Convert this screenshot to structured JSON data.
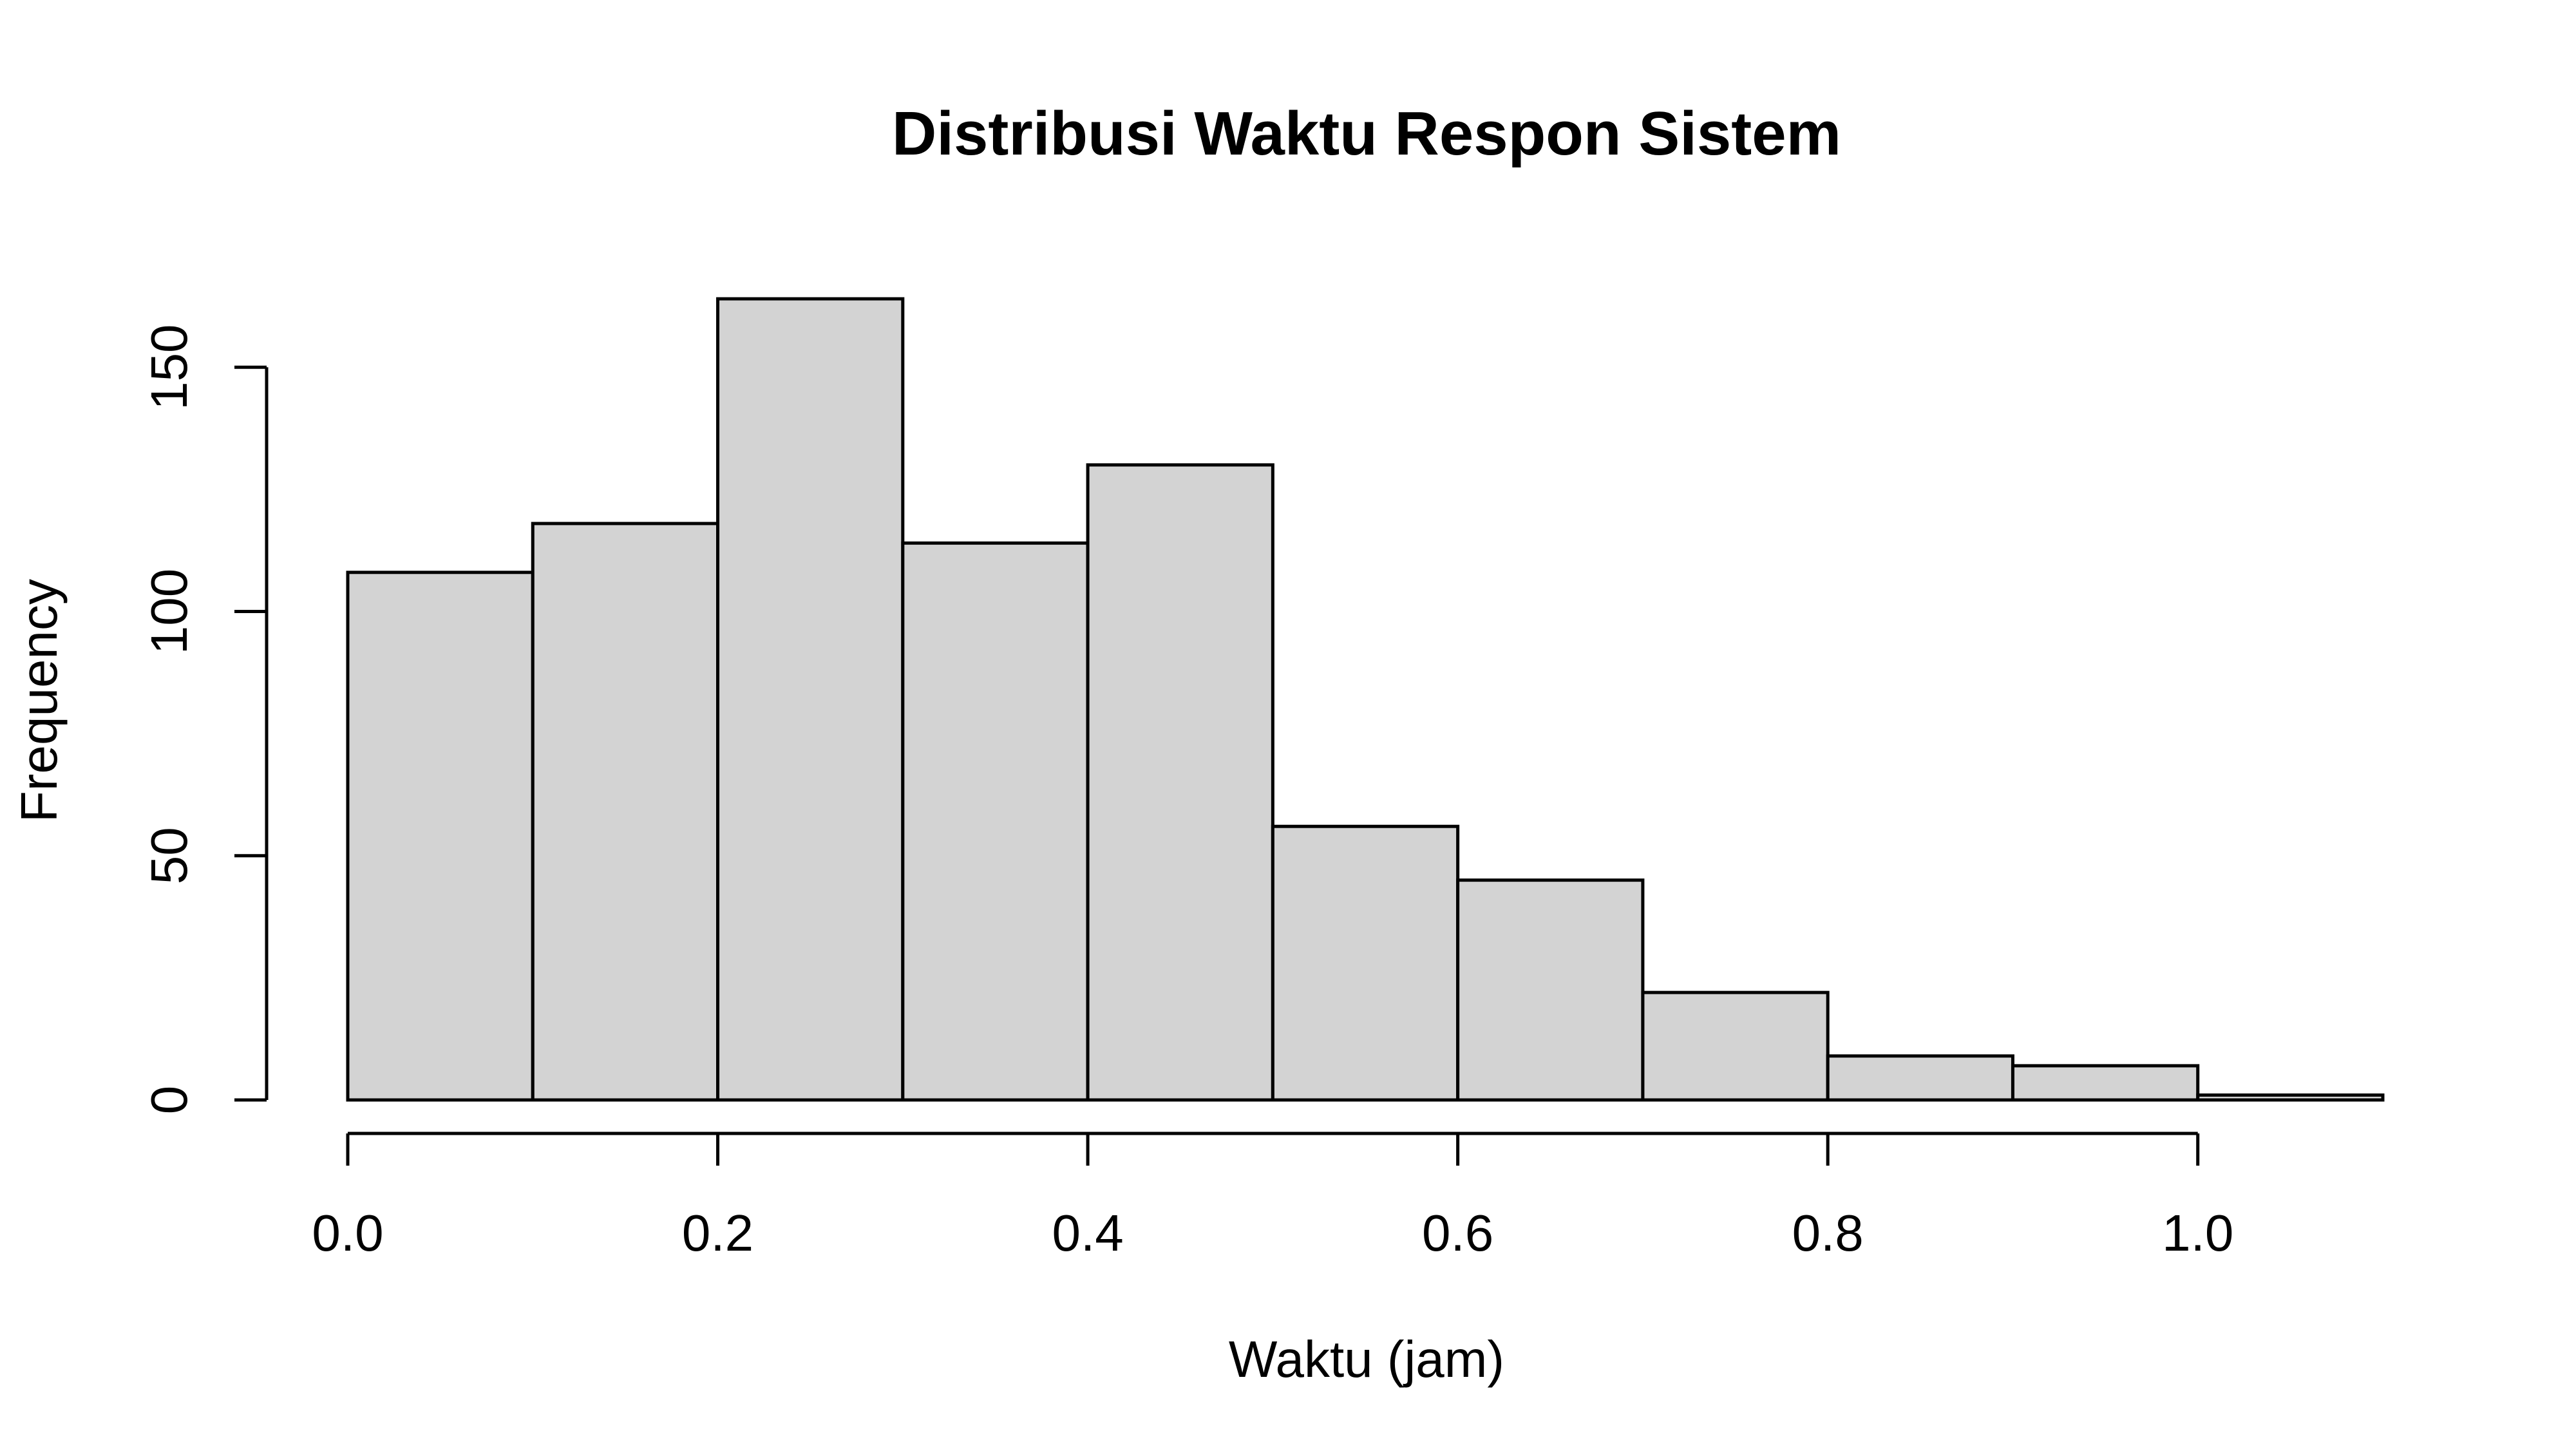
{
  "chart_data": {
    "type": "bar",
    "subtype": "histogram",
    "title": "Distribusi Waktu Respon Sistem",
    "xlabel": "Waktu (jam)",
    "ylabel": "Frequency",
    "bins": [
      {
        "start": 0.0,
        "end": 0.1,
        "count": 108
      },
      {
        "start": 0.1,
        "end": 0.2,
        "count": 118
      },
      {
        "start": 0.2,
        "end": 0.3,
        "count": 164
      },
      {
        "start": 0.3,
        "end": 0.4,
        "count": 114
      },
      {
        "start": 0.4,
        "end": 0.5,
        "count": 130
      },
      {
        "start": 0.5,
        "end": 0.6,
        "count": 56
      },
      {
        "start": 0.6,
        "end": 0.7,
        "count": 45
      },
      {
        "start": 0.7,
        "end": 0.8,
        "count": 22
      },
      {
        "start": 0.8,
        "end": 0.9,
        "count": 9
      },
      {
        "start": 0.9,
        "end": 1.0,
        "count": 7
      },
      {
        "start": 1.0,
        "end": 1.1,
        "count": 1
      }
    ],
    "xlim": [
      0.0,
      1.1
    ],
    "ylim": [
      0,
      164
    ],
    "x_ticks": [
      {
        "value": 0.0,
        "label": "0.0"
      },
      {
        "value": 0.2,
        "label": "0.2"
      },
      {
        "value": 0.4,
        "label": "0.4"
      },
      {
        "value": 0.6,
        "label": "0.6"
      },
      {
        "value": 0.8,
        "label": "0.8"
      },
      {
        "value": 1.0,
        "label": "1.0"
      }
    ],
    "y_ticks": [
      {
        "value": 0,
        "label": "0"
      },
      {
        "value": 50,
        "label": "50"
      },
      {
        "value": 100,
        "label": "100"
      },
      {
        "value": 150,
        "label": "150"
      }
    ],
    "grid": false,
    "colors": {
      "bar_fill": "#d3d3d3",
      "bar_stroke": "#000000"
    }
  }
}
